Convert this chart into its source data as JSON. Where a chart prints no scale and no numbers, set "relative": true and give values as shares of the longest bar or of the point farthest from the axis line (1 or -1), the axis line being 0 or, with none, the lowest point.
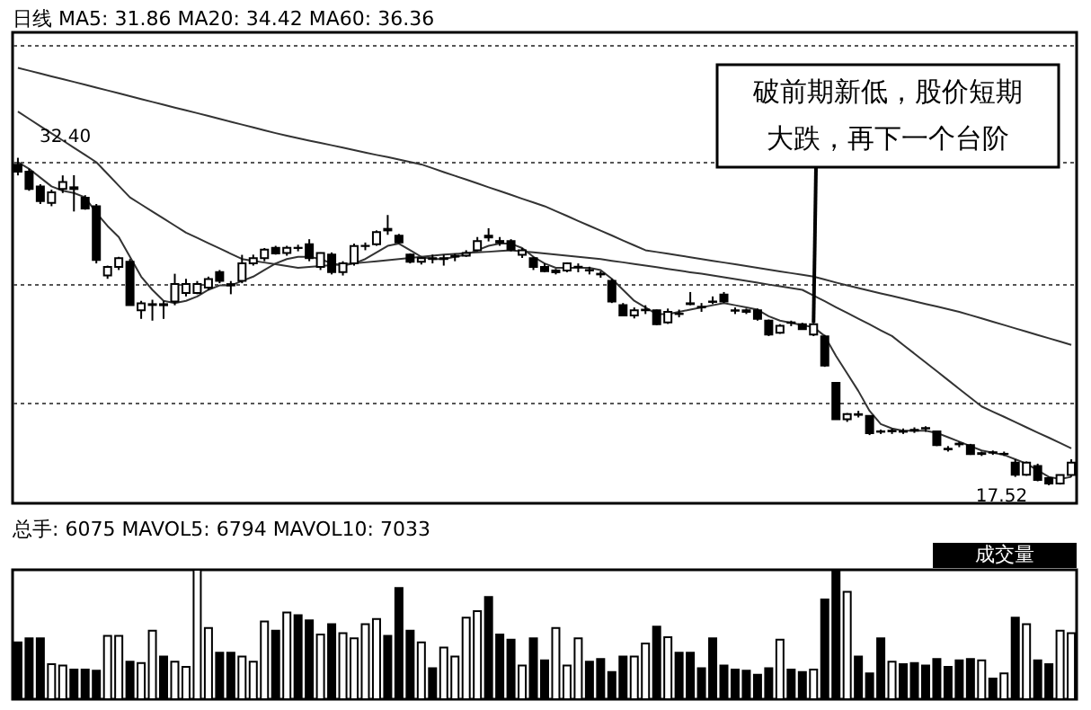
{
  "chart_data": [
    {
      "type": "candlestick",
      "title": "日线 MA5: 31.86 MA20: 34.42 MA60: 36.36",
      "categories": [
        null,
        null,
        null,
        null,
        null,
        null,
        null,
        null,
        null,
        null,
        null,
        null,
        null,
        null,
        null,
        null,
        null,
        null,
        null,
        null,
        null,
        null,
        null,
        null,
        null,
        null,
        null,
        null,
        null,
        null,
        null,
        null,
        null,
        null,
        null,
        null,
        null,
        null,
        null,
        null,
        null,
        null,
        null,
        null,
        null,
        null,
        null,
        null,
        null,
        null,
        null,
        null,
        null,
        null,
        null,
        null,
        null,
        null,
        null,
        null,
        null,
        null,
        null,
        null,
        null,
        null,
        null,
        null,
        null,
        null,
        null,
        null,
        null,
        null,
        null,
        null,
        null,
        null,
        null,
        null,
        null,
        null,
        null,
        null,
        null,
        null,
        null,
        null,
        null,
        null,
        null,
        null,
        null,
        null,
        null
      ],
      "ohlc": [
        [
          32.09,
          32.4,
          31.6,
          31.77
        ],
        [
          31.77,
          31.9,
          30.9,
          30.98
        ],
        [
          31.1,
          31.2,
          30.3,
          30.43
        ],
        [
          30.35,
          30.95,
          30.2,
          30.83
        ],
        [
          30.98,
          31.6,
          30.8,
          31.3
        ],
        [
          31.06,
          31.61,
          29.96,
          30.98
        ],
        [
          30.59,
          30.7,
          30.04,
          30.1
        ],
        [
          30.2,
          30.3,
          27.6,
          27.76
        ],
        [
          27.05,
          27.5,
          26.9,
          27.44
        ],
        [
          27.44,
          27.9,
          27.3,
          27.84
        ],
        [
          27.68,
          27.8,
          25.7,
          25.71
        ],
        [
          25.47,
          25.9,
          25.08,
          25.79
        ],
        [
          25.71,
          25.95,
          25.0,
          25.75
        ],
        [
          25.75,
          25.9,
          25.08,
          25.7
        ],
        [
          25.87,
          27.13,
          25.7,
          26.66
        ],
        [
          26.26,
          26.9,
          26.1,
          26.66
        ],
        [
          26.26,
          26.8,
          26.2,
          26.66
        ],
        [
          26.5,
          27.0,
          26.4,
          26.89
        ],
        [
          27.21,
          27.3,
          26.7,
          26.81
        ],
        [
          26.66,
          26.8,
          26.2,
          26.6
        ],
        [
          26.81,
          27.99,
          26.7,
          27.6
        ],
        [
          27.6,
          28.0,
          27.5,
          27.84
        ],
        [
          27.84,
          28.3,
          27.7,
          28.23
        ],
        [
          28.31,
          28.4,
          28.0,
          28.05
        ],
        [
          28.07,
          28.4,
          27.95,
          28.31
        ],
        [
          28.31,
          28.45,
          28.15,
          28.3
        ],
        [
          28.47,
          28.7,
          27.7,
          27.84
        ],
        [
          27.44,
          28.1,
          27.3,
          28.07
        ],
        [
          28.0,
          28.1,
          27.1,
          27.21
        ],
        [
          27.21,
          27.7,
          27.05,
          27.6
        ],
        [
          27.6,
          28.5,
          27.5,
          28.39
        ],
        [
          28.39,
          28.55,
          28.2,
          28.4
        ],
        [
          28.47,
          29.1,
          28.4,
          29.02
        ],
        [
          29.17,
          29.8,
          28.9,
          29.1
        ],
        [
          28.86,
          28.94,
          28.5,
          28.55
        ],
        [
          28.0,
          28.05,
          27.6,
          27.68
        ],
        [
          27.68,
          27.9,
          27.55,
          27.84
        ],
        [
          27.84,
          28.0,
          27.6,
          27.8
        ],
        [
          27.8,
          28.0,
          27.5,
          27.84
        ],
        [
          27.91,
          28.05,
          27.7,
          27.95
        ],
        [
          27.95,
          28.2,
          27.9,
          28.07
        ],
        [
          28.2,
          28.8,
          28.15,
          28.62
        ],
        [
          28.86,
          29.2,
          28.6,
          28.78
        ],
        [
          28.62,
          28.8,
          28.4,
          28.55
        ],
        [
          28.62,
          28.7,
          28.15,
          28.23
        ],
        [
          27.99,
          28.3,
          27.85,
          28.2
        ],
        [
          27.84,
          27.9,
          27.3,
          27.44
        ],
        [
          27.44,
          27.6,
          27.2,
          27.25
        ],
        [
          27.2,
          27.35,
          27.1,
          27.28
        ],
        [
          27.28,
          27.65,
          27.2,
          27.6
        ],
        [
          27.44,
          27.6,
          27.2,
          27.45
        ],
        [
          27.3,
          27.45,
          27.1,
          27.28
        ],
        [
          27.13,
          27.25,
          26.95,
          27.1
        ],
        [
          26.81,
          26.9,
          25.8,
          25.87
        ],
        [
          25.71,
          25.8,
          25.2,
          25.24
        ],
        [
          25.24,
          25.6,
          25.1,
          25.47
        ],
        [
          25.47,
          25.7,
          25.3,
          25.5
        ],
        [
          25.47,
          25.5,
          24.8,
          24.84
        ],
        [
          24.92,
          25.55,
          24.85,
          25.4
        ],
        [
          25.32,
          25.5,
          25.15,
          25.3
        ],
        [
          25.79,
          26.3,
          25.7,
          25.75
        ],
        [
          25.63,
          25.8,
          25.4,
          25.6
        ],
        [
          25.87,
          26.1,
          25.75,
          25.85
        ],
        [
          26.18,
          26.3,
          25.8,
          25.87
        ],
        [
          25.47,
          25.6,
          25.3,
          25.45
        ],
        [
          25.47,
          25.55,
          25.3,
          25.4
        ],
        [
          25.47,
          25.55,
          25.0,
          25.08
        ],
        [
          25.0,
          25.05,
          24.3,
          24.37
        ],
        [
          24.45,
          24.84,
          24.4,
          24.77
        ],
        [
          24.92,
          25.0,
          24.75,
          24.9
        ],
        [
          24.84,
          24.9,
          24.6,
          24.61
        ],
        [
          24.37,
          24.9,
          24.3,
          24.84
        ],
        [
          24.29,
          24.35,
          22.9,
          22.96
        ],
        [
          22.17,
          22.2,
          20.5,
          20.52
        ],
        [
          20.52,
          20.8,
          20.4,
          20.75
        ],
        [
          20.75,
          20.9,
          20.6,
          20.72
        ],
        [
          20.67,
          20.7,
          19.8,
          19.89
        ],
        [
          19.97,
          20.05,
          19.85,
          19.95
        ],
        [
          19.97,
          20.1,
          19.85,
          20.0
        ],
        [
          19.97,
          20.1,
          19.85,
          19.95
        ],
        [
          20.04,
          20.15,
          19.9,
          20.0
        ],
        [
          20.12,
          20.2,
          19.95,
          20.1
        ],
        [
          19.97,
          20.0,
          19.3,
          19.34
        ],
        [
          19.18,
          19.3,
          19.05,
          19.15
        ],
        [
          19.41,
          19.5,
          19.25,
          19.38
        ],
        [
          19.34,
          19.4,
          18.9,
          18.94
        ],
        [
          18.94,
          19.05,
          18.85,
          18.98
        ],
        [
          19.02,
          19.1,
          18.9,
          19.0
        ],
        [
          18.94,
          19.05,
          18.85,
          18.95
        ],
        [
          18.55,
          18.7,
          17.9,
          18.0
        ],
        [
          18.0,
          18.6,
          17.95,
          18.55
        ],
        [
          18.39,
          18.5,
          17.7,
          17.76
        ],
        [
          17.84,
          17.9,
          17.52,
          17.6
        ],
        [
          17.6,
          18.0,
          17.55,
          17.99
        ],
        [
          17.99,
          18.7,
          17.9,
          18.55
        ]
      ],
      "series": [
        {
          "type": "line",
          "color": "#333333",
          "values": [
            32.2,
            31.9,
            31.5,
            31.1,
            30.9,
            30.8,
            30.6,
            29.9,
            29.3,
            28.8,
            27.9,
            27.0,
            26.4,
            25.9,
            25.8,
            25.9,
            26.1,
            26.4,
            26.6,
            26.6,
            26.8,
            27.0,
            27.3,
            27.6,
            27.8,
            27.9,
            27.9,
            27.8,
            27.6,
            27.5,
            27.6,
            27.8,
            28.1,
            28.4,
            28.5,
            28.2,
            27.9,
            27.8,
            27.8,
            27.9,
            28.0,
            28.2,
            28.4,
            28.5,
            28.5,
            28.3,
            27.9,
            27.6,
            27.4,
            27.4,
            27.4,
            27.4,
            27.3,
            26.9,
            26.4,
            25.9,
            25.6,
            25.3,
            25.3,
            25.4,
            25.5,
            25.6,
            25.7,
            25.8,
            25.7,
            25.6,
            25.5,
            25.2,
            25.0,
            24.9,
            24.8,
            24.7,
            24.3,
            23.4,
            22.6,
            21.8,
            20.9,
            20.3,
            20.1,
            20.0,
            20.0,
            20.0,
            19.9,
            19.7,
            19.5,
            19.3,
            19.1,
            19.0,
            18.9,
            18.7,
            18.5,
            18.2,
            17.9,
            17.8,
            17.9
          ]
        },
        {
          "type": "line",
          "color": "#333333",
          "values": [
            34.5,
            34.17,
            33.84,
            33.51,
            33.19,
            32.86,
            32.53,
            32.2,
            31.67,
            31.13,
            30.6,
            30.28,
            29.96,
            29.64,
            29.32,
            29.0,
            28.76,
            28.52,
            28.28,
            28.04,
            27.8,
            27.72,
            27.64,
            27.56,
            27.48,
            27.4,
            27.44,
            27.48,
            27.52,
            27.56,
            27.6,
            27.65,
            27.7,
            27.75,
            27.8,
            27.85,
            27.9,
            27.95,
            28.0,
            28.03,
            28.07,
            28.1,
            28.13,
            28.17,
            28.2,
            28.15,
            28.1,
            28.05,
            28.0,
            27.95,
            27.9,
            27.85,
            27.8,
            27.72,
            27.65,
            27.57,
            27.5,
            27.43,
            27.35,
            27.28,
            27.2,
            27.13,
            27.05,
            26.97,
            26.89,
            26.81,
            26.73,
            26.64,
            26.56,
            26.48,
            26.4,
            26.14,
            25.88,
            25.61,
            25.35,
            25.09,
            24.83,
            24.56,
            24.3,
            23.9,
            23.5,
            23.1,
            22.7,
            22.3,
            21.9,
            21.5,
            21.1,
            20.86,
            20.63,
            20.39,
            20.15,
            19.91,
            19.68,
            19.44,
            19.2
          ]
        },
        {
          "type": "line",
          "color": "#333333",
          "values": [
            36.49,
            36.36,
            36.23,
            36.1,
            35.98,
            35.85,
            35.72,
            35.59,
            35.46,
            35.33,
            35.2,
            35.07,
            34.94,
            34.81,
            34.68,
            34.56,
            34.43,
            34.3,
            34.17,
            34.04,
            33.91,
            33.78,
            33.65,
            33.52,
            33.4,
            33.29,
            33.18,
            33.08,
            32.97,
            32.86,
            32.75,
            32.64,
            32.53,
            32.43,
            32.32,
            32.21,
            32.1,
            31.93,
            31.75,
            31.58,
            31.41,
            31.24,
            31.06,
            30.89,
            30.72,
            30.54,
            30.37,
            30.2,
            29.98,
            29.76,
            29.53,
            29.31,
            29.09,
            28.87,
            28.64,
            28.42,
            28.2,
            28.12,
            28.04,
            27.96,
            27.88,
            27.8,
            27.72,
            27.64,
            27.56,
            27.48,
            27.4,
            27.32,
            27.24,
            27.16,
            27.08,
            27.0,
            26.87,
            26.73,
            26.6,
            26.48,
            26.36,
            26.24,
            26.12,
            26.0,
            25.88,
            25.76,
            25.64,
            25.52,
            25.4,
            25.25,
            25.1,
            24.95,
            24.8,
            24.65,
            24.5,
            24.35,
            24.2,
            24.05,
            23.9
          ]
        }
      ],
      "ylim": [
        16.7,
        38.1
      ],
      "yticks": [
        {
          "value": 21.3,
          "label": null
        },
        {
          "value": 26.7,
          "label": null
        },
        {
          "value": 32.2,
          "label": null
        },
        {
          "value": 37.5,
          "label": null
        }
      ],
      "grid": "y",
      "tick_labels": false,
      "annotations": [
        "32.40",
        "17.52",
        "破前期新低，股价短期大跌，再下一个台阶"
      ]
    },
    {
      "type": "bar",
      "relative": true,
      "title": "总手: 6075 MAVOL5: 6794 MAVOL10: 7033",
      "categories": [
        null,
        null,
        null,
        null,
        null,
        null,
        null,
        null,
        null,
        null,
        null,
        null,
        null,
        null,
        null,
        null,
        null,
        null,
        null,
        null,
        null,
        null,
        null,
        null,
        null,
        null,
        null,
        null,
        null,
        null,
        null,
        null,
        null,
        null,
        null,
        null,
        null,
        null,
        null,
        null,
        null,
        null,
        null,
        null,
        null,
        null,
        null,
        null,
        null,
        null,
        null,
        null,
        null,
        null,
        null,
        null,
        null,
        null,
        null,
        null,
        null,
        null,
        null,
        null,
        null,
        null,
        null,
        null,
        null,
        null,
        null,
        null,
        null,
        null,
        null,
        null,
        null,
        null,
        null,
        null,
        null,
        null,
        null,
        null,
        null,
        null,
        null,
        null,
        null,
        null,
        null,
        null,
        null,
        null,
        null
      ],
      "values": [
        0.44,
        0.47,
        0.47,
        0.27,
        0.26,
        0.23,
        0.23,
        0.22,
        0.49,
        0.49,
        0.29,
        0.28,
        0.53,
        0.33,
        0.29,
        0.25,
        1.0,
        0.55,
        0.36,
        0.36,
        0.33,
        0.29,
        0.6,
        0.53,
        0.67,
        0.65,
        0.61,
        0.5,
        0.58,
        0.51,
        0.47,
        0.58,
        0.62,
        0.49,
        0.86,
        0.53,
        0.44,
        0.24,
        0.4,
        0.33,
        0.63,
        0.68,
        0.79,
        0.5,
        0.46,
        0.26,
        0.47,
        0.3,
        0.55,
        0.26,
        0.47,
        0.29,
        0.31,
        0.21,
        0.33,
        0.33,
        0.43,
        0.56,
        0.48,
        0.36,
        0.36,
        0.24,
        0.47,
        0.26,
        0.23,
        0.22,
        0.19,
        0.24,
        0.46,
        0.23,
        0.21,
        0.23,
        0.77,
        1.0,
        0.83,
        0.33,
        0.2,
        0.47,
        0.29,
        0.27,
        0.28,
        0.26,
        0.31,
        0.25,
        0.3,
        0.31,
        0.3,
        0.16,
        0.2,
        0.63,
        0.58,
        0.3,
        0.27,
        0.53,
        0.51
      ],
      "colors": [
        "#000000",
        "#000000",
        "#000000",
        "#ffffff",
        "#ffffff",
        "#000000",
        "#000000",
        "#000000",
        "#ffffff",
        "#ffffff",
        "#000000",
        "#ffffff",
        "#ffffff",
        "#000000",
        "#ffffff",
        "#ffffff",
        "#ffffff",
        "#ffffff",
        "#000000",
        "#000000",
        "#ffffff",
        "#ffffff",
        "#ffffff",
        "#000000",
        "#ffffff",
        "#000000",
        "#000000",
        "#ffffff",
        "#000000",
        "#ffffff",
        "#ffffff",
        "#ffffff",
        "#ffffff",
        "#000000",
        "#000000",
        "#000000",
        "#ffffff",
        "#000000",
        "#ffffff",
        "#ffffff",
        "#ffffff",
        "#ffffff",
        "#000000",
        "#000000",
        "#000000",
        "#ffffff",
        "#000000",
        "#000000",
        "#ffffff",
        "#ffffff",
        "#ffffff",
        "#000000",
        "#000000",
        "#000000",
        "#000000",
        "#ffffff",
        "#ffffff",
        "#000000",
        "#ffffff",
        "#000000",
        "#000000",
        "#000000",
        "#000000",
        "#000000",
        "#000000",
        "#000000",
        "#000000",
        "#000000",
        "#ffffff",
        "#000000",
        "#000000",
        "#ffffff",
        "#000000",
        "#000000",
        "#ffffff",
        "#000000",
        "#000000",
        "#000000",
        "#ffffff",
        "#000000",
        "#000000",
        "#000000",
        "#000000",
        "#000000",
        "#000000",
        "#000000",
        "#ffffff",
        "#000000",
        "#ffffff",
        "#000000",
        "#ffffff",
        "#000000",
        "#000000",
        "#ffffff",
        "#ffffff"
      ],
      "tick_labels": false,
      "annotations": [
        "成交量"
      ]
    }
  ]
}
